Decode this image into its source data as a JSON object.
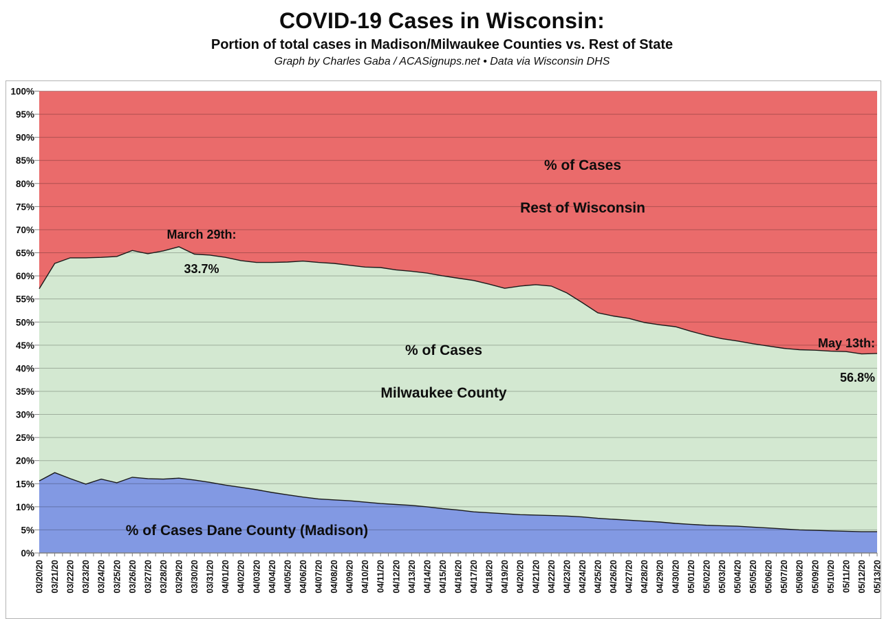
{
  "header": {
    "title": "COVID-19 Cases in Wisconsin:",
    "subtitle": "Portion of total cases in Madison/Milwaukee Counties vs. Rest of State",
    "byline": "Graph by Charles Gaba / ACASignups.net • Data via Wisconsin DHS"
  },
  "area_labels": {
    "rest": {
      "line1": "% of Cases",
      "line2": "Rest of Wisconsin"
    },
    "milwaukee": {
      "line1": "% of Cases",
      "line2": "Milwaukee County"
    },
    "dane": "% of Cases Dane County (Madison)"
  },
  "annotations": {
    "peak": {
      "line1": "March 29th:",
      "line2": "33.7%"
    },
    "latest": {
      "line1": "May 13th:",
      "line2": "56.8%"
    }
  },
  "chart_data": {
    "type": "area",
    "stacked": true,
    "title": "COVID-19 Cases in Wisconsin",
    "ylim": [
      0,
      100
    ],
    "ytick_step": 5,
    "ytick_suffix": "%",
    "grid": true,
    "legend_position": "none",
    "x": [
      "03/20/20",
      "03/21/20",
      "03/22/20",
      "03/23/20",
      "03/24/20",
      "03/25/20",
      "03/26/20",
      "03/27/20",
      "03/28/20",
      "03/29/20",
      "03/30/20",
      "03/31/20",
      "04/01/20",
      "04/02/20",
      "04/03/20",
      "04/04/20",
      "04/05/20",
      "04/06/20",
      "04/07/20",
      "04/08/20",
      "04/09/20",
      "04/10/20",
      "04/11/20",
      "04/12/20",
      "04/13/20",
      "04/14/20",
      "04/15/20",
      "04/16/20",
      "04/17/20",
      "04/18/20",
      "04/19/20",
      "04/20/20",
      "04/21/20",
      "04/22/20",
      "04/23/20",
      "04/24/20",
      "04/25/20",
      "04/26/20",
      "04/27/20",
      "04/28/20",
      "04/29/20",
      "04/30/20",
      "05/01/20",
      "05/02/20",
      "05/03/20",
      "05/04/20",
      "05/05/20",
      "05/06/20",
      "05/07/20",
      "05/08/20",
      "05/09/20",
      "05/10/20",
      "05/11/20",
      "05/12/20",
      "05/13/20"
    ],
    "series": [
      {
        "name": "Dane County (Madison)",
        "color": "#8299E3",
        "values": [
          15.6,
          17.4,
          16.1,
          14.9,
          16.0,
          15.2,
          16.4,
          16.1,
          16.0,
          16.2,
          15.8,
          15.3,
          14.7,
          14.2,
          13.7,
          13.1,
          12.6,
          12.1,
          11.7,
          11.5,
          11.3,
          11.0,
          10.7,
          10.5,
          10.3,
          10.0,
          9.6,
          9.3,
          8.9,
          8.7,
          8.5,
          8.3,
          8.2,
          8.1,
          8.0,
          7.8,
          7.5,
          7.3,
          7.1,
          6.9,
          6.7,
          6.4,
          6.2,
          6.0,
          5.9,
          5.8,
          5.6,
          5.4,
          5.2,
          5.0,
          4.9,
          4.8,
          4.7,
          4.6,
          4.6
        ]
      },
      {
        "name": "Milwaukee County",
        "color": "#D3E8D1",
        "values": [
          41.6,
          45.3,
          47.8,
          49.0,
          48.0,
          49.0,
          49.1,
          48.7,
          49.4,
          50.1,
          48.9,
          49.2,
          49.3,
          49.1,
          49.2,
          49.8,
          50.4,
          51.1,
          51.2,
          51.2,
          51.0,
          50.9,
          51.1,
          50.8,
          50.7,
          50.6,
          50.4,
          50.2,
          50.1,
          49.5,
          48.8,
          49.5,
          49.9,
          49.7,
          48.3,
          46.4,
          44.5,
          44.0,
          43.7,
          43.0,
          42.7,
          42.6,
          41.8,
          41.1,
          40.5,
          40.1,
          39.7,
          39.4,
          39.1,
          39.0,
          39.0,
          38.9,
          38.9,
          38.5,
          38.6
        ]
      },
      {
        "name": "Rest of Wisconsin",
        "color": "#EA6B6B",
        "values": [
          42.8,
          37.3,
          36.1,
          36.1,
          36.0,
          35.8,
          34.5,
          35.2,
          34.6,
          33.7,
          35.3,
          35.5,
          36.0,
          36.7,
          37.1,
          37.1,
          37.0,
          36.8,
          37.1,
          37.3,
          37.7,
          38.1,
          38.2,
          38.7,
          39.0,
          39.4,
          40.0,
          40.5,
          41.0,
          41.8,
          42.7,
          42.2,
          41.9,
          42.2,
          43.7,
          45.8,
          48.0,
          48.7,
          49.2,
          50.1,
          50.6,
          51.0,
          52.0,
          52.9,
          53.6,
          54.1,
          54.7,
          55.2,
          55.7,
          56.0,
          56.1,
          56.3,
          56.4,
          56.9,
          56.8
        ]
      }
    ],
    "annotated_points": [
      {
        "x": "03/29/20",
        "label": "March 29th: 33.7%",
        "series": "Rest of Wisconsin",
        "value": 33.7
      },
      {
        "x": "05/13/20",
        "label": "May 13th: 56.8%",
        "series": "Rest of Wisconsin",
        "value": 56.8
      }
    ],
    "colors": {
      "outline": "#1a1a1a",
      "gridline": "rgba(0,0,0,0.25)",
      "axis": "#7f7f7f"
    }
  }
}
